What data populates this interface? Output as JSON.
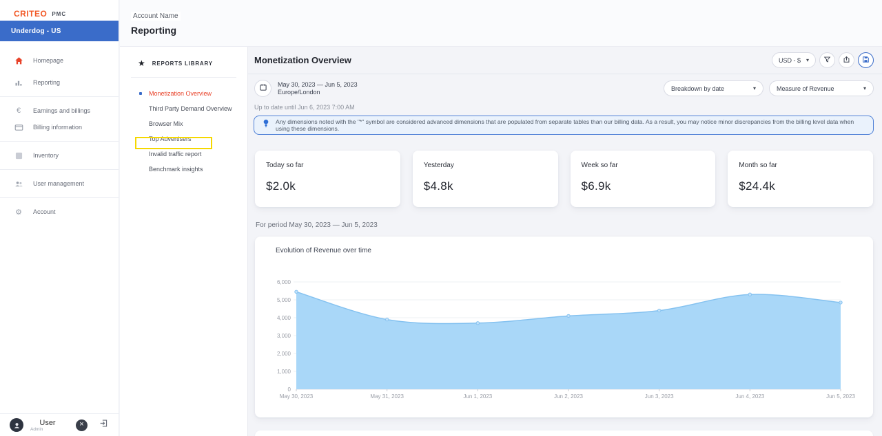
{
  "brand": {
    "logo": "CRITEO",
    "product": "PMC"
  },
  "account_bar": {
    "label": "Underdog - US"
  },
  "sidebar": {
    "items": [
      {
        "label": "Homepage",
        "icon": "home-icon"
      },
      {
        "label": "Reporting",
        "icon": "bar-chart-icon"
      },
      {
        "label": "Earnings and billings",
        "icon": "euro-icon"
      },
      {
        "label": "Billing information",
        "icon": "credit-card-icon"
      },
      {
        "label": "Inventory",
        "icon": "inventory-icon"
      },
      {
        "label": "User management",
        "icon": "users-icon"
      },
      {
        "label": "Account",
        "icon": "gear-icon"
      }
    ],
    "euro_glyph": "€",
    "gear_glyph": "⚙"
  },
  "footer": {
    "user_name": "User",
    "user_role": "Admin",
    "close_glyph": "×"
  },
  "topbar": {
    "account_label": "Account Name",
    "page_title": "Reporting"
  },
  "reports_library": {
    "title": "REPORTS LIBRARY",
    "star_glyph": "★",
    "selected_index": 0,
    "items": [
      "Monetization Overview",
      "Third Party Demand Overview",
      "Browser Mix",
      "Top Advertisers",
      "Invalid traffic report",
      "Benchmark insights"
    ]
  },
  "main": {
    "title": "Monetization Overview",
    "currency_label": "USD - $",
    "caret_glyph": "▾",
    "date_range": "May 30, 2023 — Jun 5, 2023",
    "timezone": "Europe/London",
    "updated_label": "Up to date until Jun 6, 2023 7:00 AM",
    "breakdown_select": "Breakdown by date",
    "measure_select": "Measure of Revenue",
    "notice": "Any dimensions noted with the \"*\" symbol are considered advanced dimensions that are populated from separate tables than our billing data. As a result, you may notice minor discrepancies from the billing level data when using these dimensions.",
    "stats": [
      {
        "label": "Today so far",
        "value": "$2.0k"
      },
      {
        "label": "Yesterday",
        "value": "$4.8k"
      },
      {
        "label": "Week so far",
        "value": "$6.9k"
      },
      {
        "label": "Month so far",
        "value": "$24.4k"
      }
    ],
    "period_label": "For period May 30, 2023 — Jun 5, 2023"
  },
  "chart_data": {
    "type": "area",
    "title": "Evolution of Revenue over time",
    "x": [
      "May 30, 2023",
      "May 31, 2023",
      "Jun 1, 2023",
      "Jun 2, 2023",
      "Jun 3, 2023",
      "Jun 4, 2023",
      "Jun 5, 2023"
    ],
    "values": [
      5450,
      3900,
      3700,
      4100,
      4400,
      5300,
      4850
    ],
    "ylim": [
      0,
      6000
    ],
    "yticks": [
      0,
      1000,
      2000,
      3000,
      4000,
      5000,
      6000
    ],
    "grid": true,
    "legend": "none",
    "area_color": "#a9d7f8",
    "line_color": "#85c2f0",
    "dot_fill": "#c3e2fa",
    "grid_color": "#eef0f3",
    "axis_label_color": "#999da6"
  },
  "colors": {
    "brand_orange": "#f25a28",
    "accent_blue": "#3a6cc9",
    "selected_red": "#e8432a",
    "highlight_yellow": "#f5d800",
    "notice_bg": "#eaf2fc",
    "notice_border": "#4d7fd6",
    "main_bg": "#f3f4f8"
  }
}
